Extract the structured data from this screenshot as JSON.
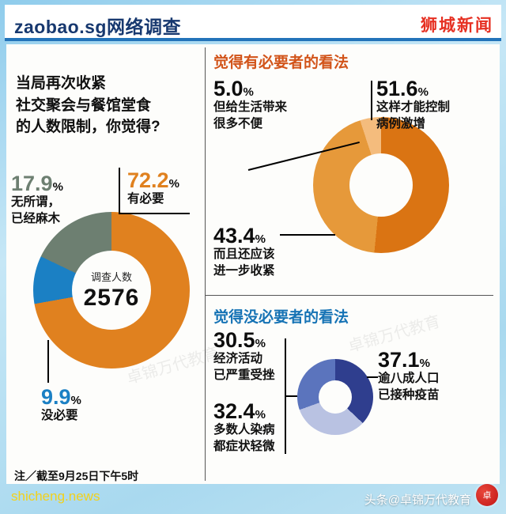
{
  "header": {
    "brand": "zaobao.sg网络调查",
    "badge": "狮城新闻"
  },
  "question": {
    "lines": [
      "当局再次收紧",
      "社交聚会与餐馆堂食",
      "的人数限制，你觉得?"
    ]
  },
  "panels": {
    "necessary_title": "觉得有必要者的看法",
    "unnecessary_title": "觉得没必要者的看法"
  },
  "note": "注／截至9月25日下午5时",
  "footer": {
    "site": "shicheng.news",
    "credit": "头条@卓锦万代教育",
    "stamp_glyph": "卓"
  },
  "watermark": "卓锦万代教育",
  "colors": {
    "brand_navy": "#17386f",
    "badge_red": "#e63022",
    "necessary_header": "#d2541a",
    "unnecessary_header": "#1673b5"
  },
  "chart_data": [
    {
      "type": "pie",
      "title": "当局再次收紧社交聚会与餐馆堂食的人数限制，你觉得?",
      "center_label": "调查人数",
      "center_value": "2576",
      "start_angle": 0,
      "slices": [
        {
          "label": "有必要",
          "lines": [
            "有必要"
          ],
          "value": 72.2,
          "display": "72.2",
          "color": "#e0811f"
        },
        {
          "label": "没必要",
          "lines": [
            "没必要"
          ],
          "value": 9.9,
          "display": "9.9",
          "color": "#1b80c4"
        },
        {
          "label": "无所谓，已经麻木",
          "lines": [
            "无所谓，",
            "已经麻木"
          ],
          "value": 17.9,
          "display": "17.9",
          "color": "#6d7f71"
        }
      ]
    },
    {
      "type": "pie",
      "title": "觉得有必要者的看法",
      "start_angle": -18,
      "slices": [
        {
          "label": "但给生活带来很多不便",
          "lines": [
            "但给生活带来",
            "很多不便"
          ],
          "value": 5.0,
          "display": "5.0",
          "color": "#f4bc7d"
        },
        {
          "label": "这样才能控制病例激增",
          "lines": [
            "这样才能控制",
            "病例激增"
          ],
          "value": 51.6,
          "display": "51.6",
          "color": "#da7413"
        },
        {
          "label": "而且还应该进一步收紧",
          "lines": [
            "而且还应该",
            "进一步收紧"
          ],
          "value": 43.4,
          "display": "43.4",
          "color": "#e6993a"
        }
      ]
    },
    {
      "type": "pie",
      "title": "觉得没必要者的看法",
      "start_angle": 0,
      "slices": [
        {
          "label": "逾八成人口已接种疫苗",
          "lines": [
            "逾八成人口",
            "已接种疫苗"
          ],
          "value": 37.1,
          "display": "37.1",
          "color": "#2f3e8e"
        },
        {
          "label": "多数人染病都症状轻微",
          "lines": [
            "多数人染病",
            "都症状轻微"
          ],
          "value": 32.4,
          "display": "32.4",
          "color": "#b9c2e2"
        },
        {
          "label": "经济活动已严重受挫",
          "lines": [
            "经济活动",
            "已严重受挫"
          ],
          "value": 30.5,
          "display": "30.5",
          "color": "#5b74bd"
        }
      ]
    }
  ]
}
